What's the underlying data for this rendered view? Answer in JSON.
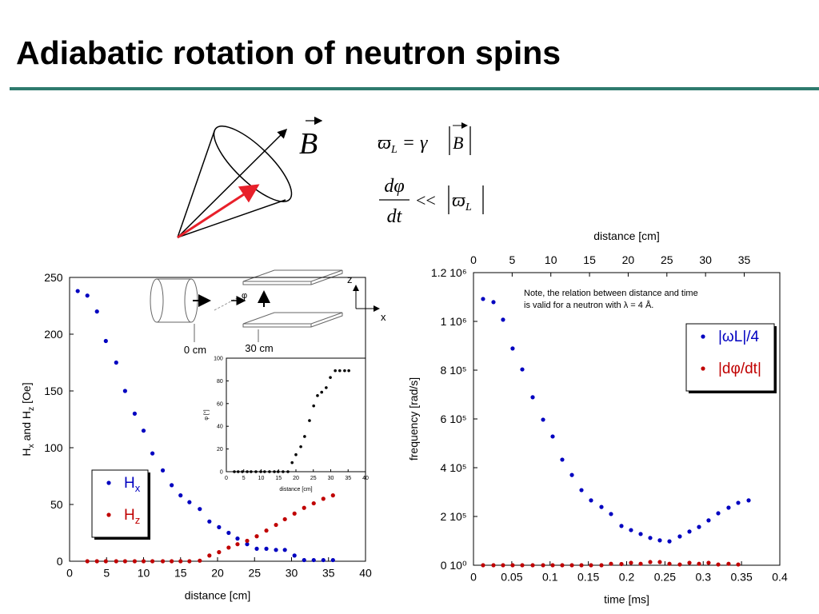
{
  "title": "Adiabatic rotation of neutron spins",
  "diagram": {
    "vector_label": "B",
    "formula_1": [
      "ϖ",
      "L",
      "= γ",
      "B"
    ],
    "formula_2": [
      "dφ",
      "dt",
      "<<",
      "ϖ",
      "L"
    ],
    "setup_labels": [
      "z",
      "x",
      "φ",
      "0 cm",
      "30 cm"
    ]
  },
  "chart_data": [
    {
      "type": "scatter",
      "x_label": "distance [cm]",
      "y_label": [
        "H",
        "x",
        " and H",
        "z",
        " [Oe]"
      ],
      "xlim": [
        0,
        40
      ],
      "xticks": [
        0,
        5,
        10,
        15,
        20,
        25,
        30,
        35,
        40
      ],
      "ylim": [
        0,
        250
      ],
      "yticks": [
        0,
        50,
        100,
        150,
        200,
        250
      ],
      "legend": "lower left",
      "series": [
        {
          "name": "Hx",
          "color": "#0000c0",
          "x": [
            1.1,
            2.4,
            3.7,
            4.9,
            6.3,
            7.5,
            8.8,
            10.0,
            11.2,
            12.6,
            13.8,
            15.0,
            16.2,
            17.6,
            18.9,
            20.2,
            21.5,
            22.7,
            24.0,
            25.3,
            26.6,
            27.9,
            29.1,
            30.4,
            31.7,
            33.0,
            34.3,
            35.6
          ],
          "values": [
            238,
            234,
            220,
            194,
            175,
            150,
            130,
            115,
            95,
            80,
            67,
            58,
            52,
            46,
            35,
            30,
            25,
            20,
            15,
            11,
            11,
            10,
            10,
            5,
            1,
            1,
            1,
            1
          ]
        },
        {
          "name": "Hz",
          "color": "#c00000",
          "x": [
            2.4,
            3.7,
            4.9,
            6.3,
            7.5,
            8.8,
            10.0,
            11.2,
            12.6,
            13.8,
            15.0,
            16.2,
            17.6,
            18.9,
            20.2,
            21.5,
            22.7,
            24.0,
            25.3,
            26.6,
            27.9,
            29.1,
            30.4,
            31.7,
            33.0,
            34.3,
            35.6
          ],
          "values": [
            0,
            0,
            0,
            0,
            0,
            0,
            0,
            0,
            0,
            0,
            0,
            0,
            0.5,
            5,
            8,
            12,
            15,
            18,
            22,
            27,
            32,
            37,
            42,
            47,
            51,
            55,
            58
          ]
        }
      ]
    },
    {
      "type": "scatter",
      "x_label": "distance [cm]",
      "y_label": "φ [°]",
      "xlim": [
        0,
        40
      ],
      "xticks": [
        0,
        5,
        10,
        15,
        20,
        25,
        30,
        35,
        40
      ],
      "ylim": [
        0,
        100
      ],
      "yticks": [
        0,
        20,
        40,
        60,
        80,
        100
      ],
      "series": [
        {
          "color": "#000000",
          "x": [
            2.3,
            3.4,
            4.6,
            6.0,
            7.1,
            8.5,
            9.9,
            11.0,
            12.4,
            13.8,
            14.9,
            16.3,
            17.7,
            18.9,
            20.0,
            21.4,
            22.5,
            23.9,
            25.1,
            26.2,
            27.4,
            28.7,
            29.9,
            31.3,
            32.6,
            34.0,
            35.2
          ],
          "values": [
            0,
            0,
            0,
            0,
            0,
            0,
            0,
            0,
            0,
            0,
            0,
            0,
            0,
            8,
            15,
            22,
            31,
            45,
            58,
            67,
            70,
            74,
            83,
            89,
            89,
            89,
            89
          ]
        }
      ]
    },
    {
      "type": "scatter",
      "x_label": "time [ms]",
      "x2_label": "distance [cm]",
      "y_label": "frequency [rad/s]",
      "xlim": [
        0,
        0.4
      ],
      "xticks": [
        0,
        0.05,
        0.1,
        0.15,
        0.2,
        0.25,
        0.3,
        0.35,
        0.4
      ],
      "x2lim": [
        0,
        39.6
      ],
      "x2ticks": [
        0,
        5,
        10,
        15,
        20,
        25,
        30,
        35
      ],
      "ylim": [
        0,
        1200000
      ],
      "yticks": [
        {
          "value": 0,
          "label": "0 10⁰"
        },
        {
          "value": 200000,
          "label": "2 10⁵"
        },
        {
          "value": 400000,
          "label": "4 10⁵"
        },
        {
          "value": 600000,
          "label": "6 10⁵"
        },
        {
          "value": 800000,
          "label": "8 10⁵"
        },
        {
          "value": 1000000,
          "label": "1 10⁶"
        },
        {
          "value": 1200000,
          "label": "1.2 10⁶"
        }
      ],
      "legend": "upper right",
      "annotation": [
        "Note, the relation between distance and time",
        "is valid for a neutron with λ = 4 Å."
      ],
      "series": [
        {
          "name": "|ωL|/4",
          "color": "#0000c0",
          "x": [
            0.0125,
            0.0261,
            0.0386,
            0.0511,
            0.0637,
            0.0773,
            0.0909,
            0.1034,
            0.1159,
            0.1285,
            0.141,
            0.1535,
            0.1671,
            0.1796,
            0.1932,
            0.2057,
            0.2183,
            0.2308,
            0.2433,
            0.2559,
            0.2694,
            0.282,
            0.2945,
            0.307,
            0.3196,
            0.3331,
            0.3457,
            0.3593
          ],
          "values": [
            1092000,
            1079000,
            1007000,
            889000,
            803000,
            689000,
            597000,
            528000,
            433000,
            370000,
            308000,
            266000,
            239000,
            210000,
            161000,
            144000,
            128000,
            112000,
            102000,
            98000,
            118000,
            138000,
            157000,
            184000,
            213000,
            236000,
            256000,
            266000
          ]
        },
        {
          "name": "|dφ/dt|",
          "color": "#c00000",
          "x": [
            0.0125,
            0.0261,
            0.0386,
            0.0511,
            0.0637,
            0.0773,
            0.0909,
            0.1034,
            0.1159,
            0.1285,
            0.141,
            0.1535,
            0.1671,
            0.1796,
            0.1932,
            0.2057,
            0.2183,
            0.2308,
            0.2433,
            0.2559,
            0.2694,
            0.282,
            0.2945,
            0.307,
            0.3196,
            0.3331,
            0.3457
          ],
          "values": [
            0,
            0,
            0,
            0,
            0,
            0,
            0,
            0,
            0,
            0,
            0,
            0,
            0,
            6000,
            5000,
            10000,
            6000,
            13000,
            13000,
            6000,
            3000,
            10000,
            6000,
            10000,
            3000,
            6000,
            3000
          ]
        }
      ]
    }
  ]
}
